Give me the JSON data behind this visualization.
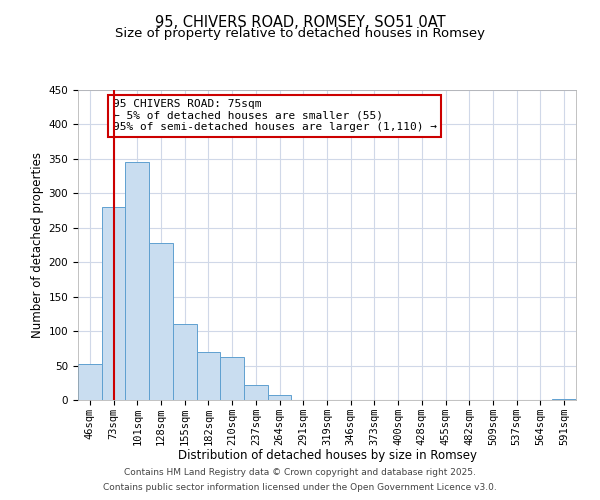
{
  "title": "95, CHIVERS ROAD, ROMSEY, SO51 0AT",
  "subtitle": "Size of property relative to detached houses in Romsey",
  "xlabel": "Distribution of detached houses by size in Romsey",
  "ylabel": "Number of detached properties",
  "categories": [
    "46sqm",
    "73sqm",
    "101sqm",
    "128sqm",
    "155sqm",
    "182sqm",
    "210sqm",
    "237sqm",
    "264sqm",
    "291sqm",
    "319sqm",
    "346sqm",
    "373sqm",
    "400sqm",
    "428sqm",
    "455sqm",
    "482sqm",
    "509sqm",
    "537sqm",
    "564sqm",
    "591sqm"
  ],
  "values": [
    52,
    280,
    345,
    228,
    110,
    70,
    63,
    22,
    7,
    0,
    0,
    0,
    0,
    0,
    0,
    0,
    0,
    0,
    0,
    0,
    2
  ],
  "bar_color": "#c9ddf0",
  "bar_edge_color": "#5fa0d0",
  "vline_x": 1,
  "vline_color": "#cc0000",
  "ylim": [
    0,
    450
  ],
  "yticks": [
    0,
    50,
    100,
    150,
    200,
    250,
    300,
    350,
    400,
    450
  ],
  "annotation_title": "95 CHIVERS ROAD: 75sqm",
  "annotation_line1": "← 5% of detached houses are smaller (55)",
  "annotation_line2": "95% of semi-detached houses are larger (1,110) →",
  "annotation_box_color": "#ffffff",
  "annotation_box_edge": "#cc0000",
  "footer1": "Contains HM Land Registry data © Crown copyright and database right 2025.",
  "footer2": "Contains public sector information licensed under the Open Government Licence v3.0.",
  "bg_color": "#ffffff",
  "grid_color": "#d0d8e8",
  "title_fontsize": 10.5,
  "subtitle_fontsize": 9.5,
  "axis_label_fontsize": 8.5,
  "tick_fontsize": 7.5,
  "annotation_fontsize": 8,
  "footer_fontsize": 6.5
}
